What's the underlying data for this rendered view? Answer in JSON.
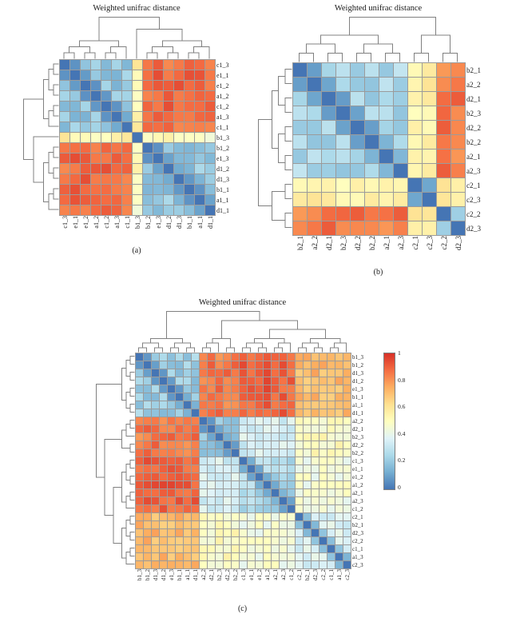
{
  "figure": {
    "background_color": "#ffffff"
  },
  "colormap": {
    "name": "RdYlBu_r",
    "stops": [
      {
        "v": 0.0,
        "color": "#4575b4"
      },
      {
        "v": 0.125,
        "color": "#74add1"
      },
      {
        "v": 0.25,
        "color": "#abd9e9"
      },
      {
        "v": 0.375,
        "color": "#e0f3f8"
      },
      {
        "v": 0.5,
        "color": "#ffffbf"
      },
      {
        "v": 0.625,
        "color": "#fee090"
      },
      {
        "v": 0.75,
        "color": "#fdae61"
      },
      {
        "v": 0.875,
        "color": "#f46d43"
      },
      {
        "v": 1.0,
        "color": "#d73027"
      }
    ],
    "grid_line_color": "#9b9b9b",
    "dendrogram_color": "#808080",
    "label_color": "#1a1a1a"
  },
  "chart_data": [
    {
      "type": "heatmap",
      "caption": "(a)",
      "title": "Weighted unifrac distance",
      "labels": [
        "c1_3",
        "e1_1",
        "e1_2",
        "a1_2",
        "c1_2",
        "a1_3",
        "c1_1",
        "b1_3",
        "b1_2",
        "e1_3",
        "d1_2",
        "d1_3",
        "b1_1",
        "a1_1",
        "d1_1"
      ],
      "row_groups": [
        0,
        0,
        0,
        0,
        0,
        0,
        0,
        1,
        2,
        2,
        2,
        2,
        2,
        2,
        2
      ],
      "group_distances": [
        [
          0.2,
          0.55,
          0.88
        ],
        [
          0.55,
          0.0,
          0.5
        ],
        [
          0.88,
          0.5,
          0.2
        ]
      ],
      "vmin": 0,
      "vmax": 1
    },
    {
      "type": "heatmap",
      "caption": "(b)",
      "title": "Weighted unifrac distance",
      "labels": [
        "b2_1",
        "a2_2",
        "d2_1",
        "b2_3",
        "d2_2",
        "b2_2",
        "a2_1",
        "a2_3",
        "c2_1",
        "c2_3",
        "c2_2",
        "d2_3"
      ],
      "row_groups": [
        0,
        0,
        0,
        0,
        0,
        0,
        0,
        0,
        1,
        1,
        2,
        2
      ],
      "group_distances": [
        [
          0.25,
          0.55,
          0.85
        ],
        [
          0.55,
          0.3,
          0.6
        ],
        [
          0.85,
          0.6,
          0.4
        ]
      ],
      "vmin": 0,
      "vmax": 1
    },
    {
      "type": "heatmap",
      "caption": "(c)",
      "title": "Weighted unifrac distance",
      "labels": [
        "b1_3",
        "b1_2",
        "d1_3",
        "d1_2",
        "e1_3",
        "b1_1",
        "a1_1",
        "d1_1",
        "a2_2",
        "d2_1",
        "b2_3",
        "d2_2",
        "b2_2",
        "c1_3",
        "e1_1",
        "e1_2",
        "a1_2",
        "a2_1",
        "a2_3",
        "c1_2",
        "c2_1",
        "b2_1",
        "d2_3",
        "c2_2",
        "c1_1",
        "a1_3",
        "c2_3"
      ],
      "row_groups": [
        0,
        0,
        0,
        0,
        0,
        0,
        0,
        0,
        1,
        1,
        1,
        1,
        1,
        2,
        2,
        2,
        2,
        2,
        2,
        2,
        3,
        3,
        3,
        3,
        3,
        3,
        3
      ],
      "group_distances": [
        [
          0.22,
          0.85,
          0.9,
          0.72
        ],
        [
          0.85,
          0.22,
          0.35,
          0.5
        ],
        [
          0.9,
          0.35,
          0.25,
          0.45
        ],
        [
          0.72,
          0.5,
          0.45,
          0.35
        ]
      ],
      "vmin": 0,
      "vmax": 1,
      "colorbar": {
        "ticks_top_to_bottom": [
          "1",
          "0.8",
          "0.6",
          "0.4",
          "0.2",
          "0"
        ]
      }
    }
  ]
}
